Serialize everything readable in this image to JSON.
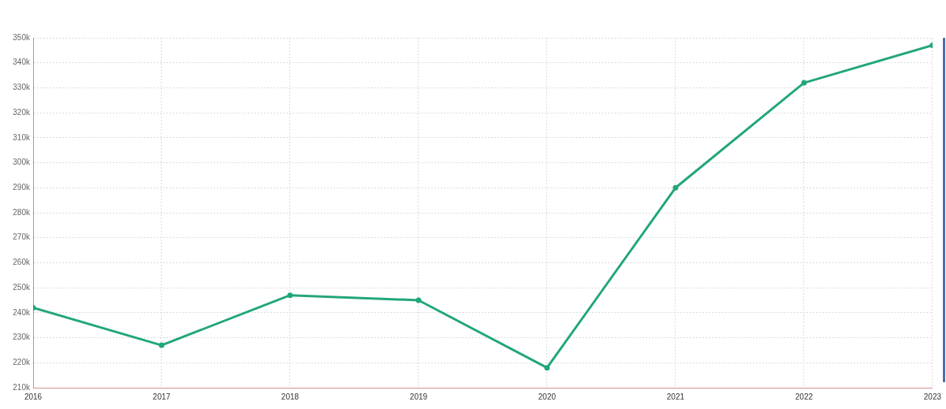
{
  "chart_data": {
    "type": "line",
    "x": [
      2016,
      2017,
      2018,
      2019,
      2020,
      2021,
      2022,
      2023
    ],
    "series": [
      {
        "color": "#22a67b",
        "values": [
          242000,
          227000,
          247000,
          245000,
          218000,
          290000,
          332000,
          347000
        ]
      }
    ],
    "xlim": [
      2016,
      2023
    ],
    "xticks": [
      2016,
      2017,
      2018,
      2019,
      2020,
      2021,
      2022,
      2023
    ],
    "ylim": [
      210000,
      350000
    ],
    "yticks": [
      {
        "value": 210000,
        "label": "210k"
      },
      {
        "value": 220000,
        "label": "220k"
      },
      {
        "value": 230000,
        "label": "230k"
      },
      {
        "value": 240000,
        "label": "240k"
      },
      {
        "value": 250000,
        "label": "250k"
      },
      {
        "value": 260000,
        "label": "260k"
      },
      {
        "value": 270000,
        "label": "270k"
      },
      {
        "value": 280000,
        "label": "280k"
      },
      {
        "value": 290000,
        "label": "290k"
      },
      {
        "value": 300000,
        "label": "300k"
      },
      {
        "value": 310000,
        "label": "310k"
      },
      {
        "value": 320000,
        "label": "320k"
      },
      {
        "value": 330000,
        "label": "330k"
      },
      {
        "value": 340000,
        "label": "340k"
      },
      {
        "value": 350000,
        "label": "350k"
      }
    ],
    "grid": true,
    "marker": "circle"
  }
}
